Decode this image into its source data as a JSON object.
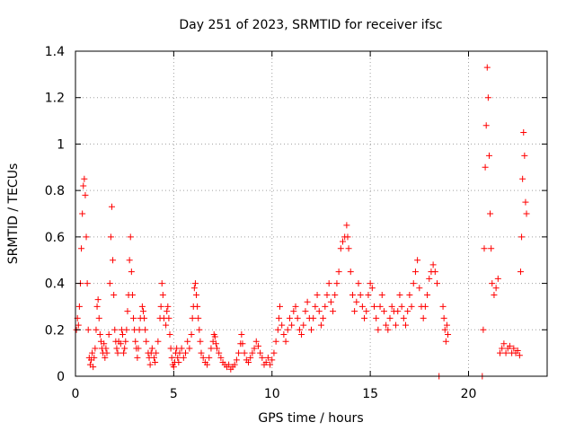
{
  "chart_data": {
    "type": "scatter",
    "title": "Day 251 of 2023, SRMTID for receiver ifsc",
    "xlabel": "GPS time / hours",
    "ylabel": "SRMTID / TECUs",
    "xlim": [
      0,
      24
    ],
    "ylim": [
      0,
      1.4
    ],
    "xticks": [
      0,
      5,
      10,
      15,
      20
    ],
    "yticks": [
      0,
      0.2,
      0.4,
      0.6,
      0.8,
      1,
      1.2,
      1.4
    ],
    "ytick_labels": [
      "0",
      "0.2",
      "0.4",
      "0.6",
      "0.8",
      "1",
      "1.2",
      "1.4"
    ],
    "grid": true,
    "marker": "+",
    "color": "#ff0000",
    "series": [
      {
        "name": "SRMTID",
        "points": [
          [
            0.05,
            0.2
          ],
          [
            0.1,
            0.25
          ],
          [
            0.15,
            0.22
          ],
          [
            0.2,
            0.3
          ],
          [
            0.25,
            0.4
          ],
          [
            0.3,
            0.55
          ],
          [
            0.35,
            0.7
          ],
          [
            0.4,
            0.82
          ],
          [
            0.45,
            0.85
          ],
          [
            0.5,
            0.78
          ],
          [
            0.55,
            0.6
          ],
          [
            0.6,
            0.4
          ],
          [
            0.65,
            0.2
          ],
          [
            0.7,
            0.08
          ],
          [
            0.75,
            0.05
          ],
          [
            0.8,
            0.07
          ],
          [
            0.85,
            0.1
          ],
          [
            0.9,
            0.04
          ],
          [
            0.95,
            0.08
          ],
          [
            1.0,
            0.12
          ],
          [
            1.05,
            0.2
          ],
          [
            1.1,
            0.3
          ],
          [
            1.15,
            0.33
          ],
          [
            1.2,
            0.25
          ],
          [
            1.25,
            0.18
          ],
          [
            1.3,
            0.15
          ],
          [
            1.35,
            0.12
          ],
          [
            1.4,
            0.1
          ],
          [
            1.45,
            0.14
          ],
          [
            1.5,
            0.08
          ],
          [
            1.55,
            0.12
          ],
          [
            1.6,
            0.1
          ],
          [
            1.7,
            0.18
          ],
          [
            1.75,
            0.4
          ],
          [
            1.8,
            0.6
          ],
          [
            1.85,
            0.73
          ],
          [
            1.9,
            0.5
          ],
          [
            1.95,
            0.35
          ],
          [
            2.0,
            0.2
          ],
          [
            2.05,
            0.15
          ],
          [
            2.1,
            0.12
          ],
          [
            2.15,
            0.1
          ],
          [
            2.2,
            0.15
          ],
          [
            2.3,
            0.14
          ],
          [
            2.35,
            0.2
          ],
          [
            2.4,
            0.18
          ],
          [
            2.45,
            0.1
          ],
          [
            2.5,
            0.12
          ],
          [
            2.55,
            0.15
          ],
          [
            2.6,
            0.2
          ],
          [
            2.65,
            0.28
          ],
          [
            2.7,
            0.35
          ],
          [
            2.75,
            0.5
          ],
          [
            2.8,
            0.6
          ],
          [
            2.85,
            0.45
          ],
          [
            2.9,
            0.35
          ],
          [
            2.95,
            0.25
          ],
          [
            3.0,
            0.2
          ],
          [
            3.05,
            0.15
          ],
          [
            3.1,
            0.12
          ],
          [
            3.15,
            0.08
          ],
          [
            3.2,
            0.12
          ],
          [
            3.25,
            0.2
          ],
          [
            3.3,
            0.25
          ],
          [
            3.4,
            0.3
          ],
          [
            3.45,
            0.28
          ],
          [
            3.5,
            0.25
          ],
          [
            3.55,
            0.2
          ],
          [
            3.6,
            0.15
          ],
          [
            3.7,
            0.1
          ],
          [
            3.75,
            0.08
          ],
          [
            3.8,
            0.05
          ],
          [
            3.85,
            0.1
          ],
          [
            3.9,
            0.12
          ],
          [
            4.0,
            0.08
          ],
          [
            4.05,
            0.06
          ],
          [
            4.1,
            0.1
          ],
          [
            4.2,
            0.15
          ],
          [
            4.3,
            0.25
          ],
          [
            4.35,
            0.3
          ],
          [
            4.4,
            0.4
          ],
          [
            4.45,
            0.35
          ],
          [
            4.5,
            0.25
          ],
          [
            4.6,
            0.22
          ],
          [
            4.65,
            0.28
          ],
          [
            4.7,
            0.3
          ],
          [
            4.75,
            0.25
          ],
          [
            4.8,
            0.18
          ],
          [
            4.85,
            0.12
          ],
          [
            4.9,
            0.08
          ],
          [
            4.95,
            0.05
          ],
          [
            5.0,
            0.04
          ],
          [
            5.05,
            0.06
          ],
          [
            5.1,
            0.1
          ],
          [
            5.15,
            0.12
          ],
          [
            5.2,
            0.08
          ],
          [
            5.25,
            0.06
          ],
          [
            5.3,
            0.1
          ],
          [
            5.4,
            0.12
          ],
          [
            5.5,
            0.08
          ],
          [
            5.6,
            0.1
          ],
          [
            5.7,
            0.15
          ],
          [
            5.8,
            0.12
          ],
          [
            5.9,
            0.18
          ],
          [
            5.95,
            0.25
          ],
          [
            6.0,
            0.3
          ],
          [
            6.05,
            0.38
          ],
          [
            6.1,
            0.4
          ],
          [
            6.15,
            0.35
          ],
          [
            6.2,
            0.3
          ],
          [
            6.25,
            0.25
          ],
          [
            6.3,
            0.2
          ],
          [
            6.35,
            0.15
          ],
          [
            6.4,
            0.1
          ],
          [
            6.5,
            0.08
          ],
          [
            6.6,
            0.06
          ],
          [
            6.7,
            0.05
          ],
          [
            6.8,
            0.08
          ],
          [
            6.9,
            0.12
          ],
          [
            7.0,
            0.15
          ],
          [
            7.05,
            0.18
          ],
          [
            7.1,
            0.17
          ],
          [
            7.15,
            0.14
          ],
          [
            7.2,
            0.12
          ],
          [
            7.3,
            0.1
          ],
          [
            7.4,
            0.08
          ],
          [
            7.5,
            0.06
          ],
          [
            7.6,
            0.05
          ],
          [
            7.7,
            0.04
          ],
          [
            7.8,
            0.05
          ],
          [
            7.9,
            0.03
          ],
          [
            8.0,
            0.04
          ],
          [
            8.1,
            0.05
          ],
          [
            8.2,
            0.07
          ],
          [
            8.3,
            0.1
          ],
          [
            8.4,
            0.14
          ],
          [
            8.45,
            0.18
          ],
          [
            8.5,
            0.14
          ],
          [
            8.6,
            0.1
          ],
          [
            8.7,
            0.07
          ],
          [
            8.8,
            0.06
          ],
          [
            8.9,
            0.08
          ],
          [
            9.0,
            0.1
          ],
          [
            9.1,
            0.12
          ],
          [
            9.2,
            0.15
          ],
          [
            9.3,
            0.13
          ],
          [
            9.4,
            0.1
          ],
          [
            9.5,
            0.08
          ],
          [
            9.6,
            0.05
          ],
          [
            9.7,
            0.06
          ],
          [
            9.8,
            0.08
          ],
          [
            9.9,
            0.05
          ],
          [
            10.0,
            0.07
          ],
          [
            10.1,
            0.1
          ],
          [
            10.2,
            0.15
          ],
          [
            10.3,
            0.2
          ],
          [
            10.35,
            0.25
          ],
          [
            10.4,
            0.3
          ],
          [
            10.5,
            0.22
          ],
          [
            10.6,
            0.18
          ],
          [
            10.7,
            0.15
          ],
          [
            10.8,
            0.2
          ],
          [
            10.9,
            0.25
          ],
          [
            11.0,
            0.22
          ],
          [
            11.1,
            0.28
          ],
          [
            11.2,
            0.3
          ],
          [
            11.3,
            0.25
          ],
          [
            11.4,
            0.2
          ],
          [
            11.5,
            0.18
          ],
          [
            11.6,
            0.22
          ],
          [
            11.7,
            0.28
          ],
          [
            11.8,
            0.32
          ],
          [
            11.9,
            0.25
          ],
          [
            12.0,
            0.2
          ],
          [
            12.1,
            0.25
          ],
          [
            12.2,
            0.3
          ],
          [
            12.3,
            0.35
          ],
          [
            12.4,
            0.28
          ],
          [
            12.5,
            0.22
          ],
          [
            12.6,
            0.25
          ],
          [
            12.7,
            0.3
          ],
          [
            12.8,
            0.35
          ],
          [
            12.9,
            0.4
          ],
          [
            13.0,
            0.32
          ],
          [
            13.1,
            0.28
          ],
          [
            13.2,
            0.35
          ],
          [
            13.3,
            0.4
          ],
          [
            13.4,
            0.45
          ],
          [
            13.5,
            0.55
          ],
          [
            13.6,
            0.58
          ],
          [
            13.7,
            0.6
          ],
          [
            13.8,
            0.65
          ],
          [
            13.85,
            0.6
          ],
          [
            13.9,
            0.55
          ],
          [
            14.0,
            0.45
          ],
          [
            14.1,
            0.35
          ],
          [
            14.2,
            0.28
          ],
          [
            14.3,
            0.32
          ],
          [
            14.4,
            0.4
          ],
          [
            14.5,
            0.35
          ],
          [
            14.6,
            0.3
          ],
          [
            14.7,
            0.25
          ],
          [
            14.8,
            0.28
          ],
          [
            14.9,
            0.35
          ],
          [
            15.0,
            0.4
          ],
          [
            15.1,
            0.38
          ],
          [
            15.2,
            0.3
          ],
          [
            15.3,
            0.25
          ],
          [
            15.4,
            0.2
          ],
          [
            15.5,
            0.3
          ],
          [
            15.6,
            0.35
          ],
          [
            15.7,
            0.28
          ],
          [
            15.8,
            0.22
          ],
          [
            15.9,
            0.2
          ],
          [
            16.0,
            0.25
          ],
          [
            16.1,
            0.3
          ],
          [
            16.2,
            0.28
          ],
          [
            16.3,
            0.22
          ],
          [
            16.4,
            0.28
          ],
          [
            16.5,
            0.35
          ],
          [
            16.6,
            0.3
          ],
          [
            16.7,
            0.25
          ],
          [
            16.8,
            0.22
          ],
          [
            16.9,
            0.28
          ],
          [
            17.0,
            0.35
          ],
          [
            17.1,
            0.3
          ],
          [
            17.2,
            0.4
          ],
          [
            17.3,
            0.45
          ],
          [
            17.4,
            0.5
          ],
          [
            17.5,
            0.38
          ],
          [
            17.6,
            0.3
          ],
          [
            17.7,
            0.25
          ],
          [
            17.8,
            0.3
          ],
          [
            17.9,
            0.35
          ],
          [
            18.0,
            0.42
          ],
          [
            18.1,
            0.45
          ],
          [
            18.2,
            0.48
          ],
          [
            18.3,
            0.45
          ],
          [
            18.4,
            0.4
          ],
          [
            18.5,
            0.0
          ],
          [
            18.7,
            0.3
          ],
          [
            18.75,
            0.25
          ],
          [
            18.8,
            0.2
          ],
          [
            18.85,
            0.15
          ],
          [
            18.9,
            0.22
          ],
          [
            18.95,
            0.18
          ],
          [
            20.7,
            0.0
          ],
          [
            20.75,
            0.2
          ],
          [
            20.8,
            0.55
          ],
          [
            20.85,
            0.9
          ],
          [
            20.9,
            1.08
          ],
          [
            20.95,
            1.33
          ],
          [
            21.0,
            1.2
          ],
          [
            21.05,
            0.95
          ],
          [
            21.1,
            0.7
          ],
          [
            21.15,
            0.55
          ],
          [
            21.2,
            0.4
          ],
          [
            21.3,
            0.35
          ],
          [
            21.4,
            0.38
          ],
          [
            21.5,
            0.42
          ],
          [
            21.6,
            0.1
          ],
          [
            21.7,
            0.12
          ],
          [
            21.8,
            0.14
          ],
          [
            21.9,
            0.1
          ],
          [
            22.0,
            0.12
          ],
          [
            22.1,
            0.13
          ],
          [
            22.2,
            0.1
          ],
          [
            22.3,
            0.12
          ],
          [
            22.4,
            0.1
          ],
          [
            22.5,
            0.11
          ],
          [
            22.6,
            0.09
          ],
          [
            22.65,
            0.45
          ],
          [
            22.7,
            0.6
          ],
          [
            22.75,
            0.85
          ],
          [
            22.8,
            1.05
          ],
          [
            22.85,
            0.95
          ],
          [
            22.9,
            0.75
          ],
          [
            22.95,
            0.7
          ]
        ]
      }
    ]
  }
}
